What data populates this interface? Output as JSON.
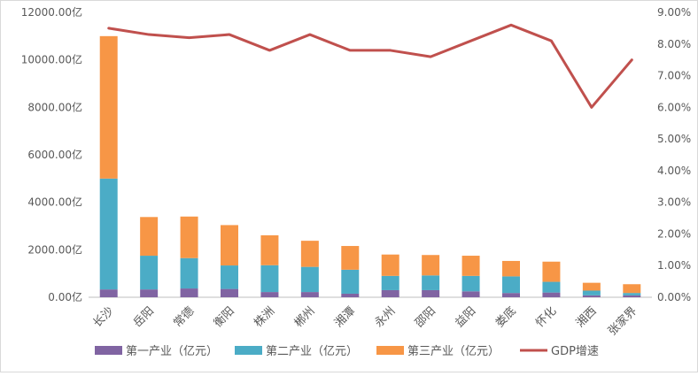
{
  "chart_data": {
    "type": "bar",
    "stacked": true,
    "categories": [
      "长沙",
      "岳阳",
      "常德",
      "衡阳",
      "株洲",
      "郴州",
      "湘潭",
      "永州",
      "邵阳",
      "益阳",
      "娄底",
      "怀化",
      "湘西",
      "张家界"
    ],
    "series": [
      {
        "name": "第一产业（亿元）",
        "color": "#8064a2",
        "values": [
          330,
          330,
          370,
          350,
          220,
          220,
          150,
          300,
          300,
          250,
          180,
          200,
          80,
          80
        ]
      },
      {
        "name": "第二产业（亿元）",
        "color": "#4bacc6",
        "values": [
          4670,
          1420,
          1280,
          990,
          1130,
          1060,
          1010,
          600,
          620,
          650,
          700,
          450,
          200,
          100
        ]
      },
      {
        "name": "第三产业（亿元）",
        "color": "#f79646",
        "values": [
          6000,
          1630,
          1750,
          1700,
          1260,
          1100,
          1000,
          900,
          860,
          850,
          650,
          850,
          330,
          370
        ]
      }
    ],
    "line_series": {
      "name": "GDP增速",
      "color": "#c0504d",
      "axis": "right",
      "values": [
        8.5,
        8.3,
        8.2,
        8.3,
        7.8,
        8.3,
        7.8,
        7.8,
        7.6,
        8.1,
        8.6,
        8.1,
        6.0,
        7.5
      ]
    },
    "y_left": {
      "ylim": [
        0,
        12000
      ],
      "ticks": [
        "0.00亿",
        "2000.00亿",
        "4000.00亿",
        "6000.00亿",
        "8000.00亿",
        "10000.00亿",
        "12000.00亿"
      ]
    },
    "y_right": {
      "ylim": [
        0,
        9
      ],
      "ticks": [
        "0.00%",
        "1.00%",
        "2.00%",
        "3.00%",
        "4.00%",
        "5.00%",
        "6.00%",
        "7.00%",
        "8.00%",
        "9.00%"
      ]
    },
    "legend_position": "bottom",
    "grid": false
  }
}
